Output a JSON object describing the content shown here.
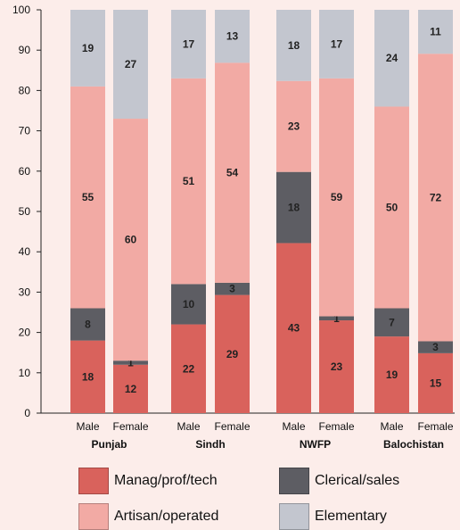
{
  "chart_data": {
    "type": "bar",
    "stacked": true,
    "ylim": [
      0,
      100
    ],
    "yticks": [
      0,
      10,
      20,
      30,
      40,
      50,
      60,
      70,
      80,
      90,
      100
    ],
    "groups": [
      {
        "name": "Punjab",
        "bars": [
          {
            "label": "Male",
            "values": [
              18,
              8,
              55,
              19
            ]
          },
          {
            "label": "Female",
            "values": [
              12,
              1,
              60,
              27
            ]
          }
        ]
      },
      {
        "name": "Sindh",
        "bars": [
          {
            "label": "Male",
            "values": [
              22,
              10,
              51,
              17
            ]
          },
          {
            "label": "Female",
            "values": [
              29,
              3,
              54,
              13
            ]
          }
        ]
      },
      {
        "name": "NWFP",
        "bars": [
          {
            "label": "Male",
            "values": [
              43,
              18,
              23,
              18
            ]
          },
          {
            "label": "Female",
            "values": [
              23,
              1,
              59,
              17
            ]
          }
        ]
      },
      {
        "name": "Balochistan",
        "bars": [
          {
            "label": "Male",
            "values": [
              19,
              7,
              50,
              24
            ]
          },
          {
            "label": "Female",
            "values": [
              15,
              3,
              72,
              11
            ]
          }
        ]
      }
    ],
    "series": [
      {
        "name": "Manag/prof/tech",
        "color": "#d9625c"
      },
      {
        "name": "Clerical/sales",
        "color": "#5d5d63"
      },
      {
        "name": "Artisan/operated",
        "color": "#f2aaa4"
      },
      {
        "name": "Elementary",
        "color": "#c3c6cf"
      }
    ],
    "legend_position": "bottom"
  }
}
